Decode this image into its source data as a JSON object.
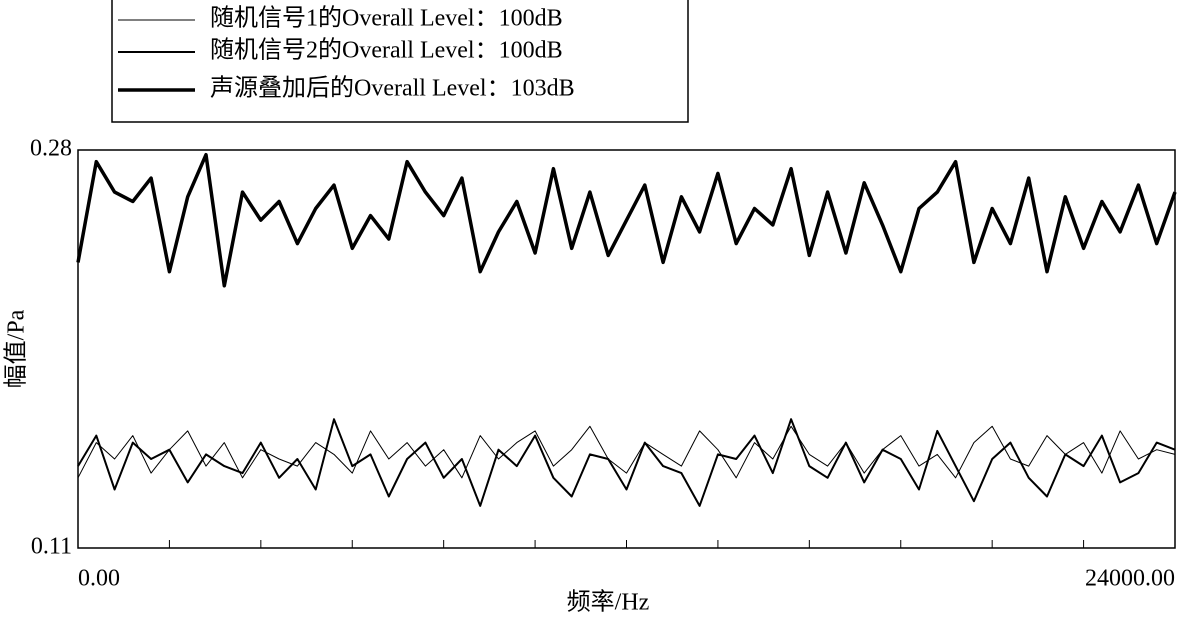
{
  "chart_data": {
    "type": "line",
    "xlabel": "频率/Hz",
    "ylabel": "幅值/Pa",
    "x": [
      0,
      400,
      800,
      1200,
      1600,
      2000,
      2400,
      2800,
      3200,
      3600,
      4000,
      4400,
      4800,
      5200,
      5600,
      6000,
      6400,
      6800,
      7200,
      7600,
      8000,
      8400,
      8800,
      9200,
      9600,
      10000,
      10400,
      10800,
      11200,
      11600,
      12000,
      12400,
      12800,
      13200,
      13600,
      14000,
      14400,
      14800,
      15200,
      15600,
      16000,
      16400,
      16800,
      17200,
      17600,
      18000,
      18400,
      18800,
      19200,
      19600,
      20000,
      20400,
      20800,
      21200,
      21600,
      22000,
      22400,
      22800,
      23200,
      23600,
      24000
    ],
    "series": [
      {
        "name": "随机信号1的Overall Level：100dB",
        "color": "#000000",
        "line_width": 1,
        "values": [
          0.14,
          0.155,
          0.148,
          0.158,
          0.142,
          0.152,
          0.16,
          0.145,
          0.155,
          0.14,
          0.152,
          0.148,
          0.145,
          0.155,
          0.15,
          0.142,
          0.16,
          0.148,
          0.155,
          0.145,
          0.152,
          0.14,
          0.158,
          0.148,
          0.155,
          0.16,
          0.145,
          0.152,
          0.162,
          0.148,
          0.142,
          0.155,
          0.15,
          0.145,
          0.16,
          0.152,
          0.14,
          0.155,
          0.148,
          0.162,
          0.15,
          0.145,
          0.155,
          0.142,
          0.152,
          0.158,
          0.145,
          0.15,
          0.14,
          0.155,
          0.162,
          0.148,
          0.145,
          0.158,
          0.15,
          0.155,
          0.142,
          0.16,
          0.148,
          0.152,
          0.15
        ]
      },
      {
        "name": "随机信号2的Overall Level：100dB",
        "color": "#000000",
        "line_width": 2,
        "values": [
          0.145,
          0.158,
          0.135,
          0.155,
          0.148,
          0.152,
          0.138,
          0.15,
          0.145,
          0.142,
          0.155,
          0.14,
          0.148,
          0.135,
          0.165,
          0.145,
          0.15,
          0.132,
          0.148,
          0.155,
          0.14,
          0.148,
          0.128,
          0.152,
          0.145,
          0.158,
          0.14,
          0.132,
          0.15,
          0.148,
          0.135,
          0.155,
          0.145,
          0.142,
          0.128,
          0.15,
          0.148,
          0.158,
          0.142,
          0.165,
          0.145,
          0.14,
          0.155,
          0.138,
          0.152,
          0.148,
          0.135,
          0.16,
          0.145,
          0.13,
          0.148,
          0.155,
          0.14,
          0.132,
          0.15,
          0.145,
          0.158,
          0.138,
          0.142,
          0.155,
          0.152
        ]
      },
      {
        "name": "声源叠加后的Overall Level：103dB",
        "color": "#000000",
        "line_width": 3.5,
        "values": [
          0.232,
          0.275,
          0.262,
          0.258,
          0.268,
          0.228,
          0.26,
          0.278,
          0.222,
          0.262,
          0.25,
          0.258,
          0.24,
          0.255,
          0.265,
          0.238,
          0.252,
          0.242,
          0.275,
          0.262,
          0.252,
          0.268,
          0.228,
          0.245,
          0.258,
          0.236,
          0.272,
          0.238,
          0.262,
          0.235,
          0.25,
          0.265,
          0.232,
          0.26,
          0.245,
          0.27,
          0.24,
          0.255,
          0.248,
          0.272,
          0.235,
          0.262,
          0.236,
          0.266,
          0.248,
          0.228,
          0.255,
          0.262,
          0.275,
          0.232,
          0.255,
          0.24,
          0.268,
          0.228,
          0.26,
          0.238,
          0.258,
          0.245,
          0.265,
          0.24,
          0.262
        ]
      }
    ],
    "xlim": [
      0,
      24000
    ],
    "xticks": [
      {
        "value": 0,
        "label": "0.00"
      },
      {
        "value": 24000,
        "label": "24000.00"
      }
    ],
    "xminorticks": [
      2000,
      4000,
      6000,
      8000,
      10000,
      12000,
      14000,
      16000,
      18000,
      20000,
      22000
    ],
    "ylim": [
      0.11,
      0.28
    ],
    "yticks": [
      0.28,
      0.11
    ]
  }
}
